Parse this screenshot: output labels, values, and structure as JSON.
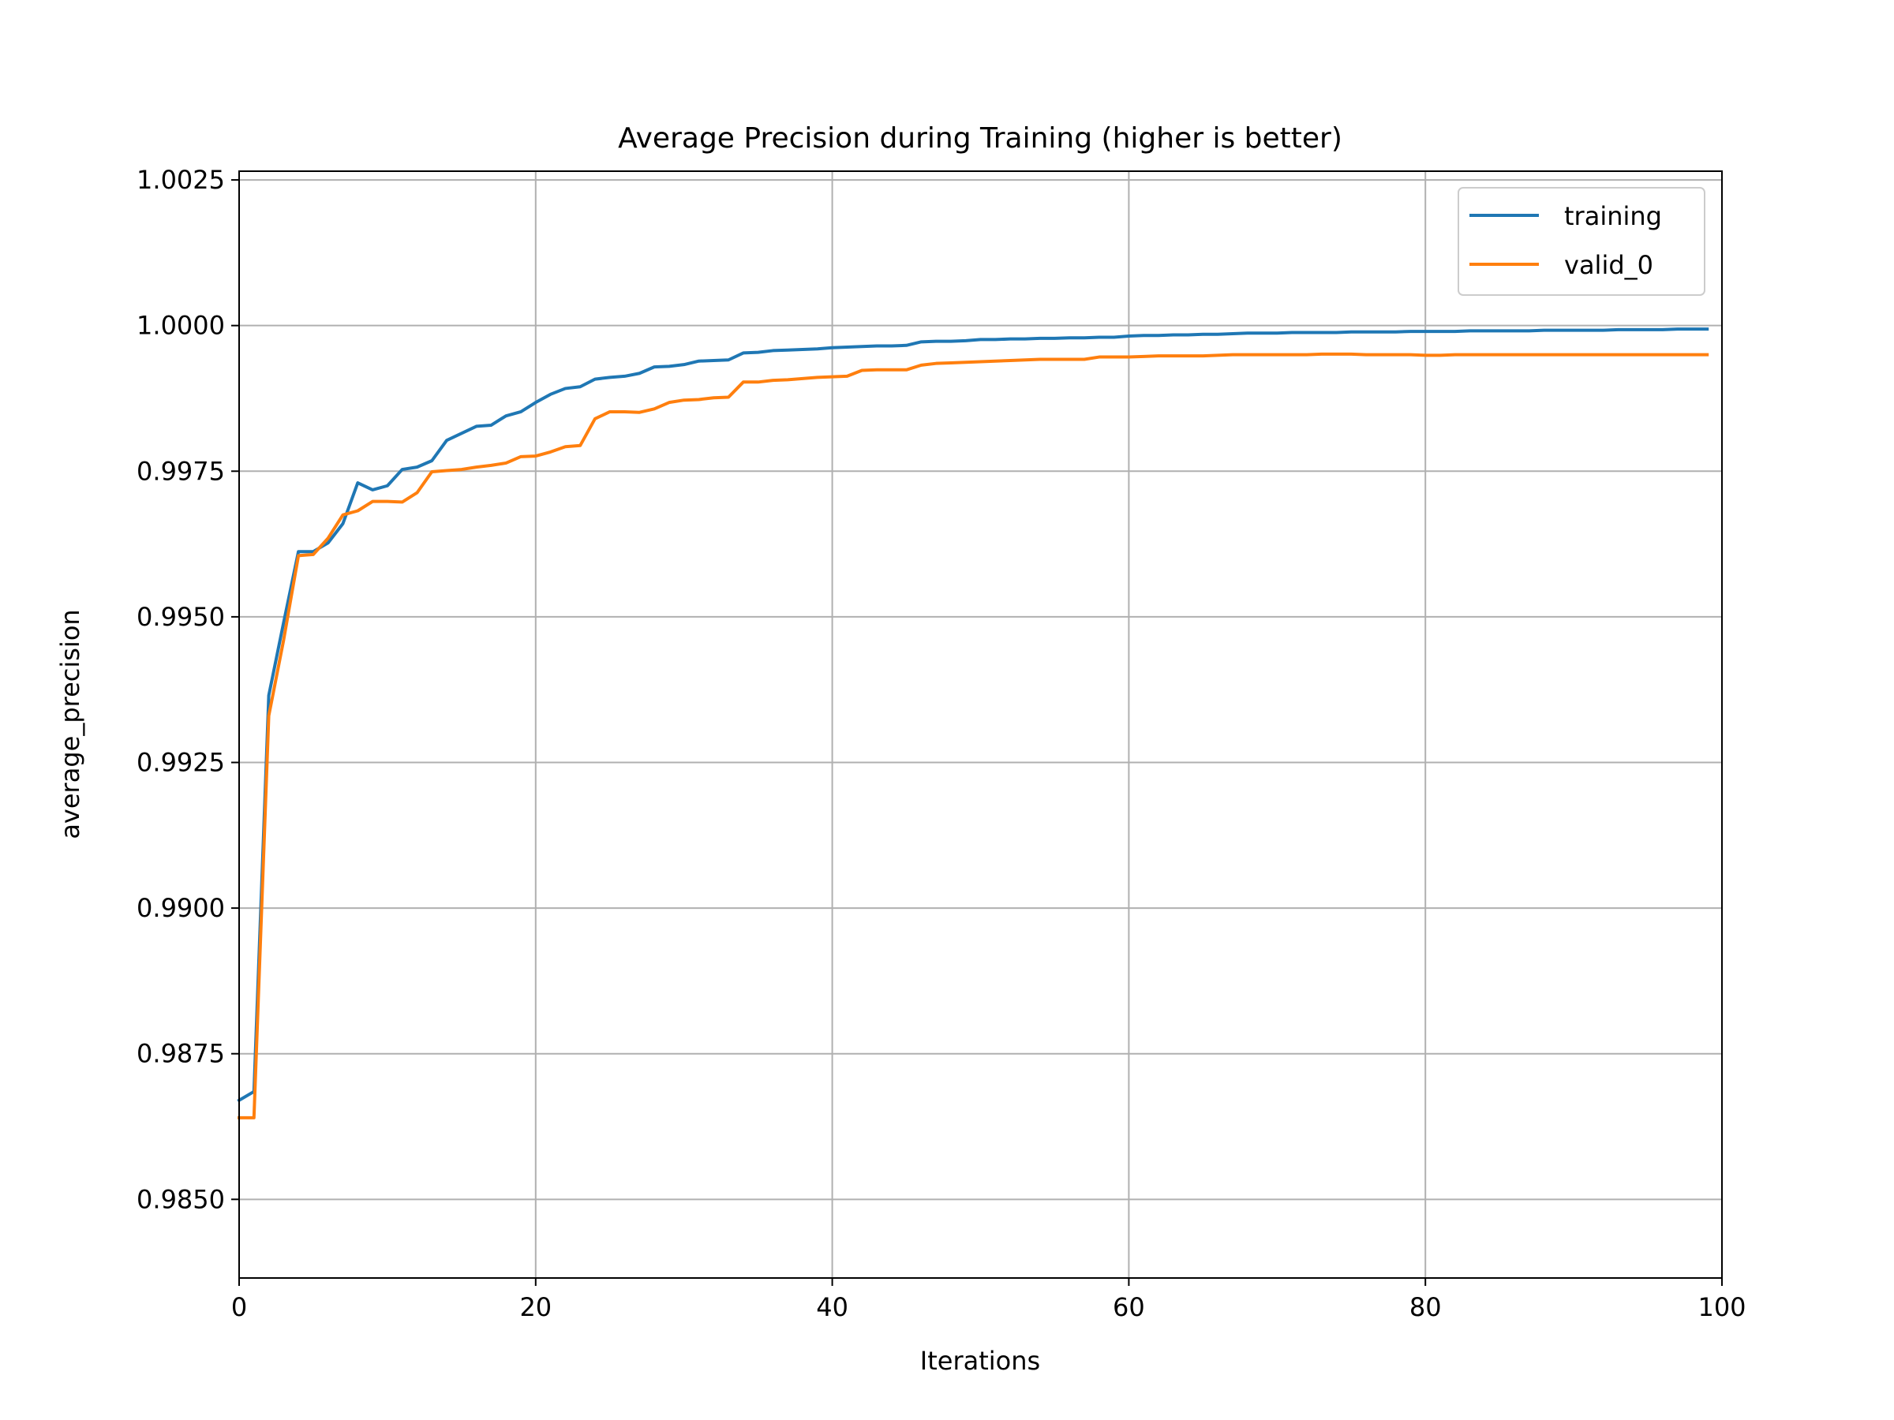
{
  "chart_data": {
    "type": "line",
    "title": "Average Precision during Training (higher is better)",
    "xlabel": "Iterations",
    "ylabel": "average_precision",
    "xlim": [
      0,
      100
    ],
    "ylim": [
      0.98365,
      1.00265
    ],
    "xticks": [
      "0",
      "20",
      "40",
      "60",
      "80",
      "100"
    ],
    "xtick_values": [
      0,
      20,
      40,
      60,
      80,
      100
    ],
    "yticks": [
      "0.9850",
      "0.9875",
      "0.9900",
      "0.9925",
      "0.9950",
      "0.9975",
      "1.0000",
      "1.0025"
    ],
    "ytick_values": [
      0.985,
      0.9875,
      0.99,
      0.9925,
      0.995,
      0.9975,
      1.0,
      1.0025
    ],
    "grid": true,
    "legend": "top-right",
    "series": [
      {
        "name": "training",
        "color": "#1f77b4",
        "x": [
          0,
          1,
          2,
          3,
          4,
          5,
          6,
          7,
          8,
          9,
          10,
          11,
          12,
          13,
          14,
          15,
          16,
          17,
          18,
          19,
          20,
          21,
          22,
          23,
          24,
          25,
          26,
          27,
          28,
          29,
          30,
          31,
          32,
          33,
          34,
          35,
          36,
          37,
          38,
          39,
          40,
          41,
          42,
          43,
          44,
          45,
          46,
          47,
          48,
          49,
          50,
          51,
          52,
          53,
          54,
          55,
          56,
          57,
          58,
          59,
          60,
          61,
          62,
          63,
          64,
          65,
          66,
          67,
          68,
          69,
          70,
          71,
          72,
          73,
          74,
          75,
          76,
          77,
          78,
          79,
          80,
          81,
          82,
          83,
          84,
          85,
          86,
          87,
          88,
          89,
          90,
          91,
          92,
          93,
          94,
          95,
          96,
          97,
          98,
          99
        ],
        "values": [
          0.9867,
          0.98685,
          0.99365,
          0.9949,
          0.99612,
          0.99612,
          0.99627,
          0.9966,
          0.9973,
          0.99718,
          0.99725,
          0.99753,
          0.99757,
          0.99768,
          0.99803,
          0.99815,
          0.99827,
          0.99829,
          0.99845,
          0.99852,
          0.99868,
          0.99882,
          0.99892,
          0.99895,
          0.99908,
          0.99911,
          0.99913,
          0.99918,
          0.99929,
          0.9993,
          0.99933,
          0.99939,
          0.9994,
          0.99941,
          0.99953,
          0.99954,
          0.99957,
          0.99958,
          0.99959,
          0.9996,
          0.99962,
          0.99963,
          0.99964,
          0.99965,
          0.99965,
          0.99966,
          0.99972,
          0.99973,
          0.99973,
          0.99974,
          0.99976,
          0.99976,
          0.99977,
          0.99977,
          0.99978,
          0.99978,
          0.99979,
          0.99979,
          0.9998,
          0.9998,
          0.99982,
          0.99983,
          0.99983,
          0.99984,
          0.99984,
          0.99985,
          0.99985,
          0.99986,
          0.99987,
          0.99987,
          0.99987,
          0.99988,
          0.99988,
          0.99988,
          0.99988,
          0.99989,
          0.99989,
          0.99989,
          0.99989,
          0.9999,
          0.9999,
          0.9999,
          0.9999,
          0.99991,
          0.99991,
          0.99991,
          0.99991,
          0.99991,
          0.99992,
          0.99992,
          0.99992,
          0.99992,
          0.99992,
          0.99993,
          0.99993,
          0.99993,
          0.99993,
          0.99994,
          0.99994,
          0.99994
        ]
      },
      {
        "name": "valid_0",
        "color": "#ff7f0e",
        "x": [
          0,
          1,
          2,
          3,
          4,
          5,
          6,
          7,
          8,
          9,
          10,
          11,
          12,
          13,
          14,
          15,
          16,
          17,
          18,
          19,
          20,
          21,
          22,
          23,
          24,
          25,
          26,
          27,
          28,
          29,
          30,
          31,
          32,
          33,
          34,
          35,
          36,
          37,
          38,
          39,
          40,
          41,
          42,
          43,
          44,
          45,
          46,
          47,
          48,
          49,
          50,
          51,
          52,
          53,
          54,
          55,
          56,
          57,
          58,
          59,
          60,
          61,
          62,
          63,
          64,
          65,
          66,
          67,
          68,
          69,
          70,
          71,
          72,
          73,
          74,
          75,
          76,
          77,
          78,
          79,
          80,
          81,
          82,
          83,
          84,
          85,
          86,
          87,
          88,
          89,
          90,
          91,
          92,
          93,
          94,
          95,
          96,
          97,
          98,
          99
        ],
        "values": [
          0.9864,
          0.9864,
          0.9933,
          0.9946,
          0.99605,
          0.99607,
          0.99635,
          0.99675,
          0.99682,
          0.99698,
          0.99698,
          0.99697,
          0.99713,
          0.99749,
          0.99751,
          0.99753,
          0.99757,
          0.9976,
          0.99764,
          0.99775,
          0.99776,
          0.99783,
          0.99792,
          0.99794,
          0.9984,
          0.99852,
          0.99852,
          0.99851,
          0.99857,
          0.99868,
          0.99872,
          0.99873,
          0.99876,
          0.99877,
          0.99903,
          0.99903,
          0.99906,
          0.99907,
          0.99909,
          0.99911,
          0.99912,
          0.99913,
          0.99923,
          0.99924,
          0.99924,
          0.99924,
          0.99932,
          0.99935,
          0.99936,
          0.99937,
          0.99938,
          0.99939,
          0.9994,
          0.99941,
          0.99942,
          0.99942,
          0.99942,
          0.99942,
          0.99946,
          0.99946,
          0.99946,
          0.99947,
          0.99948,
          0.99948,
          0.99948,
          0.99948,
          0.99949,
          0.9995,
          0.9995,
          0.9995,
          0.9995,
          0.9995,
          0.9995,
          0.99951,
          0.99951,
          0.99951,
          0.9995,
          0.9995,
          0.9995,
          0.9995,
          0.99949,
          0.99949,
          0.9995,
          0.9995,
          0.9995,
          0.9995,
          0.9995,
          0.9995,
          0.9995,
          0.9995,
          0.9995,
          0.9995,
          0.9995,
          0.9995,
          0.9995,
          0.9995,
          0.9995,
          0.9995,
          0.9995,
          0.9995
        ]
      }
    ]
  }
}
